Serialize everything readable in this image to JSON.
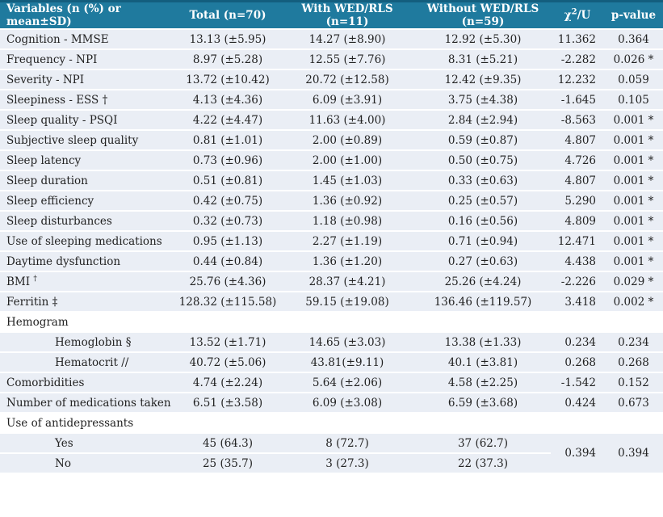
{
  "table": {
    "colors": {
      "header_bg": "#1f7a9e",
      "header_border": "#135e7e",
      "row_bg": "#eaeef5",
      "text": "#222222",
      "header_text": "#ffffff"
    },
    "header": {
      "variables": "Variables (n (%) or mean±SD)",
      "total": "Total (n=70)",
      "with_group": "With WED/RLS (n=11)",
      "without_group": "Without WED/RLS (n=59)",
      "chi": {
        "base": "χ",
        "sup": "2",
        "rest": "/U"
      },
      "p": "p-value"
    },
    "rows": [
      {
        "label": "Cognition - MMSE",
        "cells": [
          "13.13 (±5.95)",
          "14.27 (±8.90)",
          "12.92 (±5.30)",
          "11.362",
          "0.364"
        ]
      },
      {
        "label": "Frequency - NPI",
        "cells": [
          "8.97 (±5.28)",
          "12.55 (±7.76)",
          "8.31 (±5.21)",
          "-2.282",
          "0.026 *"
        ]
      },
      {
        "label": "Severity - NPI",
        "cells": [
          "13.72 (±10.42)",
          "20.72 (±12.58)",
          "12.42 (±9.35)",
          "12.232",
          "0.059"
        ]
      },
      {
        "label": "Sleepiness - ESS †",
        "cells": [
          "4.13 (±4.36)",
          "6.09 (±3.91)",
          "3.75 (±4.38)",
          "-1.645",
          "0.105"
        ]
      },
      {
        "label": "Sleep quality - PSQI",
        "cells": [
          "4.22 (±4.47)",
          "11.63 (±4.00)",
          "2.84 (±2.94)",
          "-8.563",
          "0.001 *"
        ]
      },
      {
        "label": "Subjective sleep quality",
        "cells": [
          "0.81 (±1.01)",
          "2.00 (±0.89)",
          "0.59 (±0.87)",
          "4.807",
          "0.001 *"
        ]
      },
      {
        "label": "Sleep latency",
        "cells": [
          "0.73 (±0.96)",
          "2.00 (±1.00)",
          "0.50 (±0.75)",
          "4.726",
          "0.001 *"
        ]
      },
      {
        "label": "Sleep duration",
        "cells": [
          "0.51 (±0.81)",
          "1.45 (±1.03)",
          "0.33 (±0.63)",
          "4.807",
          "0.001 *"
        ]
      },
      {
        "label": "Sleep efficiency",
        "cells": [
          "0.42 (±0.75)",
          "1.36 (±0.92)",
          "0.25 (±0.57)",
          "5.290",
          "0.001 *"
        ]
      },
      {
        "label": "Sleep disturbances",
        "cells": [
          "0.32 (±0.73)",
          "1.18 (±0.98)",
          "0.16 (±0.56)",
          "4.809",
          "0.001 *"
        ]
      },
      {
        "label": "Use of sleeping medications",
        "cells": [
          "0.95 (±1.13)",
          "2.27 (±1.19)",
          "0.71 (±0.94)",
          "12.471",
          "0.001 *"
        ]
      },
      {
        "label": "Daytime dysfunction",
        "cells": [
          "0.44 (±0.84)",
          "1.36 (±1.20)",
          "0.27 (±0.63)",
          "4.438",
          "0.001 *"
        ]
      },
      {
        "label": "BMI",
        "sup": "†",
        "cells": [
          "25.76 (±4.36)",
          "28.37 (±4.21)",
          "25.26 (±4.24)",
          "-2.226",
          "0.029 *"
        ]
      },
      {
        "label": "Ferritin ‡",
        "cells": [
          "128.32 (±115.58)",
          "59.15 (±19.08)",
          "136.46 (±119.57)",
          "3.418",
          "0.002 *"
        ]
      },
      {
        "label": "Hemogram",
        "section": true
      },
      {
        "label": "Hemoglobin §",
        "indent": true,
        "cells": [
          "13.52 (±1.71)",
          "14.65 (±3.03)",
          "13.38 (±1.33)",
          "0.234",
          "0.234"
        ]
      },
      {
        "label": "Hematocrit //",
        "indent": true,
        "cells": [
          "40.72 (±5.06)",
          "43.81(±9.11)",
          "40.1 (±3.81)",
          "0.268",
          "0.268"
        ]
      },
      {
        "label": "Comorbidities",
        "cells": [
          "4.74 (±2.24)",
          "5.64 (±2.06)",
          "4.58 (±2.25)",
          "-1.542",
          "0.152"
        ]
      },
      {
        "label": "Number of medications taken",
        "cells": [
          "6.51 (±3.58)",
          "6.09 (±3.08)",
          "6.59 (±3.68)",
          "0.424",
          "0.673"
        ]
      },
      {
        "label": "Use of antidepressants",
        "section": true
      },
      {
        "label": "Yes",
        "indent": true,
        "cells": [
          "45 (64.3)",
          "8 (72.7)",
          "37 (62.7)"
        ],
        "merged": {
          "chi": "0.394",
          "p": "0.394",
          "rows": 2
        }
      },
      {
        "label": "No",
        "indent": true,
        "cells": [
          "25 (35.7)",
          "3 (27.3)",
          "22 (37.3)"
        ]
      }
    ]
  }
}
